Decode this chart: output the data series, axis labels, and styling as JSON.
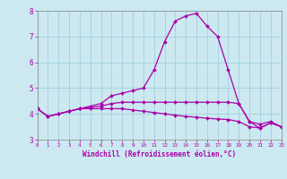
{
  "x": [
    0,
    1,
    2,
    3,
    4,
    5,
    6,
    7,
    8,
    9,
    10,
    11,
    12,
    13,
    14,
    15,
    16,
    17,
    18,
    19,
    20,
    21,
    22,
    23
  ],
  "line1": [
    4.2,
    3.9,
    4.0,
    4.1,
    4.2,
    4.3,
    4.4,
    4.7,
    4.8,
    4.9,
    5.0,
    5.7,
    6.8,
    7.6,
    7.8,
    7.9,
    7.4,
    7.0,
    5.7,
    4.4,
    3.7,
    3.6,
    3.7,
    3.5
  ],
  "line2": [
    4.2,
    3.9,
    4.0,
    4.1,
    4.2,
    4.25,
    4.3,
    4.4,
    4.45,
    4.45,
    4.45,
    4.45,
    4.45,
    4.45,
    4.45,
    4.45,
    4.45,
    4.45,
    4.45,
    4.4,
    3.7,
    3.45,
    3.65,
    3.5
  ],
  "line3": [
    4.2,
    3.9,
    4.0,
    4.1,
    4.2,
    4.2,
    4.2,
    4.2,
    4.2,
    4.15,
    4.1,
    4.05,
    4.0,
    3.95,
    3.9,
    3.87,
    3.83,
    3.8,
    3.78,
    3.7,
    3.5,
    3.45,
    3.65,
    3.5
  ],
  "line_color": "#aa00aa",
  "bg_color": "#cce8f0",
  "grid_color": "#99ccdd",
  "xlabel": "Windchill (Refroidissement éolien,°C)",
  "ylim": [
    3,
    8
  ],
  "xlim": [
    0,
    23
  ],
  "yticks": [
    3,
    4,
    5,
    6,
    7,
    8
  ],
  "xticks": [
    0,
    1,
    2,
    3,
    4,
    5,
    6,
    7,
    8,
    9,
    10,
    11,
    12,
    13,
    14,
    15,
    16,
    17,
    18,
    19,
    20,
    21,
    22,
    23
  ],
  "xlabel_fontsize": 5.5,
  "tick_fontsize_x": 4.2,
  "tick_fontsize_y": 5.5
}
